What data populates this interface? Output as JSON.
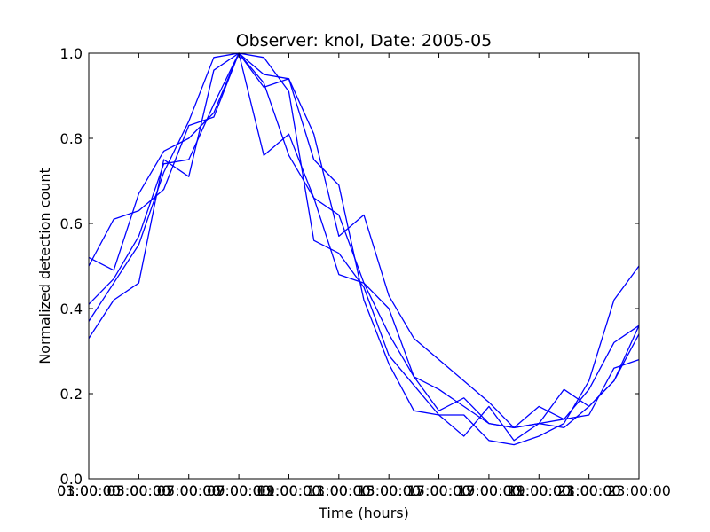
{
  "chart_data": {
    "type": "line",
    "title": "Observer: knol, Date: 2005-05",
    "xlabel": "Time (hours)",
    "ylabel": "Normalized detection count",
    "xlim": [
      1,
      23
    ],
    "ylim": [
      0,
      1
    ],
    "grid": false,
    "line_color": "#0000ff",
    "x_ticks": [
      {
        "value": 1,
        "labels": [
          "01:00:00",
          "03:00:00"
        ]
      },
      {
        "value": 3,
        "labels": [
          "03:00:00",
          "05:00:00"
        ]
      },
      {
        "value": 5,
        "labels": [
          "05:00:00",
          "07:00:00"
        ]
      },
      {
        "value": 7,
        "labels": [
          "07:00:00",
          "09:00:00"
        ]
      },
      {
        "value": 9,
        "labels": [
          "09:00:00",
          "11:00:00"
        ]
      },
      {
        "value": 11,
        "labels": [
          "11:00:00",
          "13:00:00"
        ]
      },
      {
        "value": 13,
        "labels": [
          "13:00:00",
          "15:00:00"
        ]
      },
      {
        "value": 15,
        "labels": [
          "15:00:00",
          "17:00:00"
        ]
      },
      {
        "value": 17,
        "labels": [
          "17:00:00",
          "19:00:00"
        ]
      },
      {
        "value": 19,
        "labels": [
          "19:00:00",
          "21:00:00"
        ]
      },
      {
        "value": 21,
        "labels": [
          "21:00:00",
          "23:00:00"
        ]
      },
      {
        "value": 23,
        "labels": [
          "23:00:00"
        ]
      }
    ],
    "y_ticks": [
      {
        "value": 0.0,
        "label": "0.0"
      },
      {
        "value": 0.2,
        "label": "0.2"
      },
      {
        "value": 0.4,
        "label": "0.4"
      },
      {
        "value": 0.6,
        "label": "0.6"
      },
      {
        "value": 0.8,
        "label": "0.8"
      },
      {
        "value": 1.0,
        "label": "1.0"
      }
    ],
    "x": [
      1,
      2,
      3,
      4,
      5,
      6,
      7,
      8,
      9,
      10,
      11,
      12,
      13,
      14,
      15,
      16,
      17,
      18,
      19,
      20,
      21,
      22,
      23
    ],
    "series": [
      {
        "values": [
          0.52,
          0.49,
          0.67,
          0.77,
          0.8,
          0.86,
          1.0,
          0.95,
          0.94,
          0.81,
          0.57,
          0.62,
          0.43,
          0.33,
          0.28,
          0.23,
          0.18,
          0.12,
          0.17,
          0.14,
          0.15,
          0.26,
          0.28
        ]
      },
      {
        "values": [
          0.5,
          0.61,
          0.63,
          0.68,
          0.83,
          0.85,
          1.0,
          0.76,
          0.81,
          0.66,
          0.62,
          0.46,
          0.34,
          0.24,
          0.21,
          0.17,
          0.13,
          0.12,
          0.13,
          0.21,
          0.17,
          0.23,
          0.36
        ]
      },
      {
        "values": [
          0.41,
          0.47,
          0.57,
          0.74,
          0.75,
          0.88,
          1.0,
          0.92,
          0.94,
          0.75,
          0.69,
          0.42,
          0.27,
          0.16,
          0.15,
          0.15,
          0.09,
          0.08,
          0.1,
          0.13,
          0.23,
          0.42,
          0.5
        ]
      },
      {
        "values": [
          0.37,
          0.46,
          0.55,
          0.72,
          0.84,
          0.99,
          1.0,
          0.99,
          0.91,
          0.56,
          0.53,
          0.45,
          0.29,
          0.22,
          0.15,
          0.1,
          0.17,
          0.09,
          0.13,
          0.12,
          0.17,
          0.23,
          0.34
        ]
      },
      {
        "values": [
          0.33,
          0.42,
          0.46,
          0.75,
          0.71,
          0.96,
          1.0,
          0.93,
          0.76,
          0.66,
          0.48,
          0.46,
          0.4,
          0.24,
          0.16,
          0.19,
          0.13,
          0.12,
          0.13,
          0.14,
          0.21,
          0.32,
          0.36
        ]
      }
    ]
  }
}
